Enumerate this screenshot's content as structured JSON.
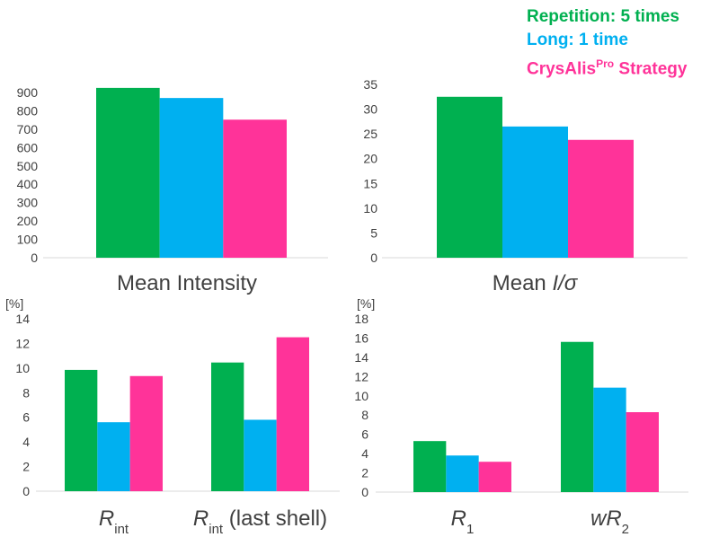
{
  "legend": [
    {
      "label": "Repetition: 5 times",
      "color": "#00B050"
    },
    {
      "label": "Long: 1 time",
      "color": "#00B0F0"
    },
    {
      "label": "CrysAlis",
      "sup": "Pro",
      "suffix": " Strategy",
      "color": "#FF3399"
    }
  ],
  "chart_data": [
    {
      "type": "bar",
      "xlabel": "Mean Intensity",
      "ylim": [
        0,
        900
      ],
      "yticks": [
        0,
        100,
        200,
        300,
        400,
        500,
        600,
        700,
        800,
        900
      ],
      "categories": [
        ""
      ],
      "series": [
        {
          "name": "Repetition: 5 times",
          "values": [
            925
          ]
        },
        {
          "name": "Long: 1 time",
          "values": [
            870
          ]
        },
        {
          "name": "CrysAlisPro Strategy",
          "values": [
            752
          ]
        }
      ],
      "grid": false
    },
    {
      "type": "bar",
      "xlabel_parts": [
        {
          "t": "Mean "
        },
        {
          "t": "I/σ",
          "i": true
        }
      ],
      "ylim": [
        0,
        35
      ],
      "yticks": [
        0,
        5,
        10,
        15,
        20,
        25,
        30,
        35
      ],
      "categories": [
        ""
      ],
      "series": [
        {
          "name": "Repetition: 5 times",
          "values": [
            32.5
          ]
        },
        {
          "name": "Long: 1 time",
          "values": [
            26.5
          ]
        },
        {
          "name": "CrysAlisPro Strategy",
          "values": [
            23.8
          ]
        }
      ],
      "grid": false
    },
    {
      "type": "bar",
      "ylabel": "[%]",
      "ylim": [
        0,
        14
      ],
      "yticks": [
        0,
        2,
        4,
        6,
        8,
        10,
        12,
        14
      ],
      "categories": [
        "Rint",
        "Rint (last shell)"
      ],
      "category_labels": [
        [
          {
            "t": "R",
            "i": true
          },
          {
            "t": "int",
            "sub": true
          }
        ],
        [
          {
            "t": "R",
            "i": true
          },
          {
            "t": "int",
            "sub": true
          },
          {
            "t": " (last shell)"
          }
        ]
      ],
      "series": [
        {
          "name": "Repetition: 5 times",
          "values": [
            9.85,
            10.45
          ]
        },
        {
          "name": "Long: 1 time",
          "values": [
            5.6,
            5.8
          ]
        },
        {
          "name": "CrysAlisPro Strategy",
          "values": [
            9.35,
            12.5
          ]
        }
      ],
      "grid": false
    },
    {
      "type": "bar",
      "ylabel": "[%]",
      "ylim": [
        0,
        18
      ],
      "yticks": [
        0,
        2,
        4,
        6,
        8,
        10,
        12,
        14,
        16,
        18
      ],
      "categories": [
        "R1",
        "wR2"
      ],
      "category_labels": [
        [
          {
            "t": "R",
            "i": true
          },
          {
            "t": "1",
            "sub": true
          }
        ],
        [
          {
            "t": "wR",
            "i": true
          },
          {
            "t": "2",
            "sub": true
          }
        ]
      ],
      "series": [
        {
          "name": "Repetition: 5 times",
          "values": [
            5.3,
            15.6
          ]
        },
        {
          "name": "Long: 1 time",
          "values": [
            3.8,
            10.85
          ]
        },
        {
          "name": "CrysAlisPro Strategy",
          "values": [
            3.15,
            8.3
          ]
        }
      ],
      "grid": false
    }
  ]
}
